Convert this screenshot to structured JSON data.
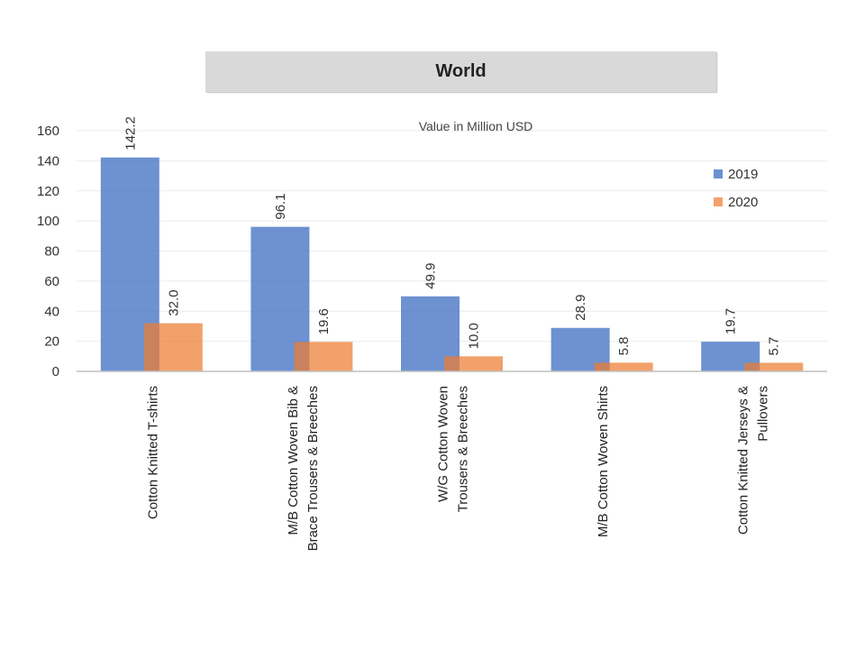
{
  "chart_data": {
    "type": "bar",
    "title": "World",
    "subtitle": "Value in Million USD",
    "categories": [
      [
        "Cotton  Knitted  T-shirts"
      ],
      [
        "M/B Cotton  Woven Bib &",
        "Brace Trousers & Breeches"
      ],
      [
        "W/G Cotton Woven",
        "Trousers & Breeches"
      ],
      [
        "M/B Cotton  Woven  Shirts"
      ],
      [
        "Cotton  Knitted  Jerseys &",
        "Pullovers"
      ]
    ],
    "series": [
      {
        "name": "2019",
        "values": [
          142.2,
          96.1,
          49.9,
          28.9,
          19.7
        ],
        "labels": [
          "142.2",
          "96.1",
          "49.9",
          "28.9",
          "19.7"
        ],
        "color": "#4472c4"
      },
      {
        "name": "2020",
        "values": [
          32.0,
          19.6,
          10.0,
          5.8,
          5.7
        ],
        "labels": [
          "32.0",
          "19.6",
          "10.0",
          "5.8",
          "5.7"
        ],
        "color": "#ed7d31"
      }
    ],
    "ylim": [
      0,
      160
    ],
    "yticks": [
      0,
      20,
      40,
      60,
      80,
      100,
      120,
      140,
      160
    ],
    "grid": true,
    "legend": "top-right"
  }
}
